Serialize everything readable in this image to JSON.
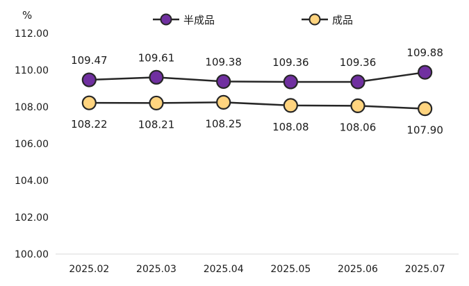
{
  "chart_data": {
    "type": "line",
    "title": "",
    "ylabel": "%",
    "xlabel": "",
    "categories": [
      "2025.02",
      "2025.03",
      "2025.04",
      "2025.05",
      "2025.06",
      "2025.07"
    ],
    "ylim": [
      100,
      112
    ],
    "yticks": [
      "100.00",
      "102.00",
      "104.00",
      "106.00",
      "108.00",
      "110.00",
      "112.00"
    ],
    "grid": false,
    "legend_position": "top-center",
    "series": [
      {
        "name": "半成品",
        "values": [
          109.47,
          109.61,
          109.38,
          109.36,
          109.36,
          109.88
        ],
        "labels": [
          "109.47",
          "109.61",
          "109.38",
          "109.36",
          "109.36",
          "109.88"
        ],
        "label_position": "above",
        "fill_color": "#7030A0",
        "line_color": "#262626"
      },
      {
        "name": "成品",
        "values": [
          108.22,
          108.21,
          108.25,
          108.08,
          108.06,
          107.9
        ],
        "labels": [
          "108.22",
          "108.21",
          "108.25",
          "108.08",
          "108.06",
          "107.90"
        ],
        "label_position": "below",
        "fill_color": "#FFD47F",
        "line_color": "#262626"
      }
    ]
  }
}
